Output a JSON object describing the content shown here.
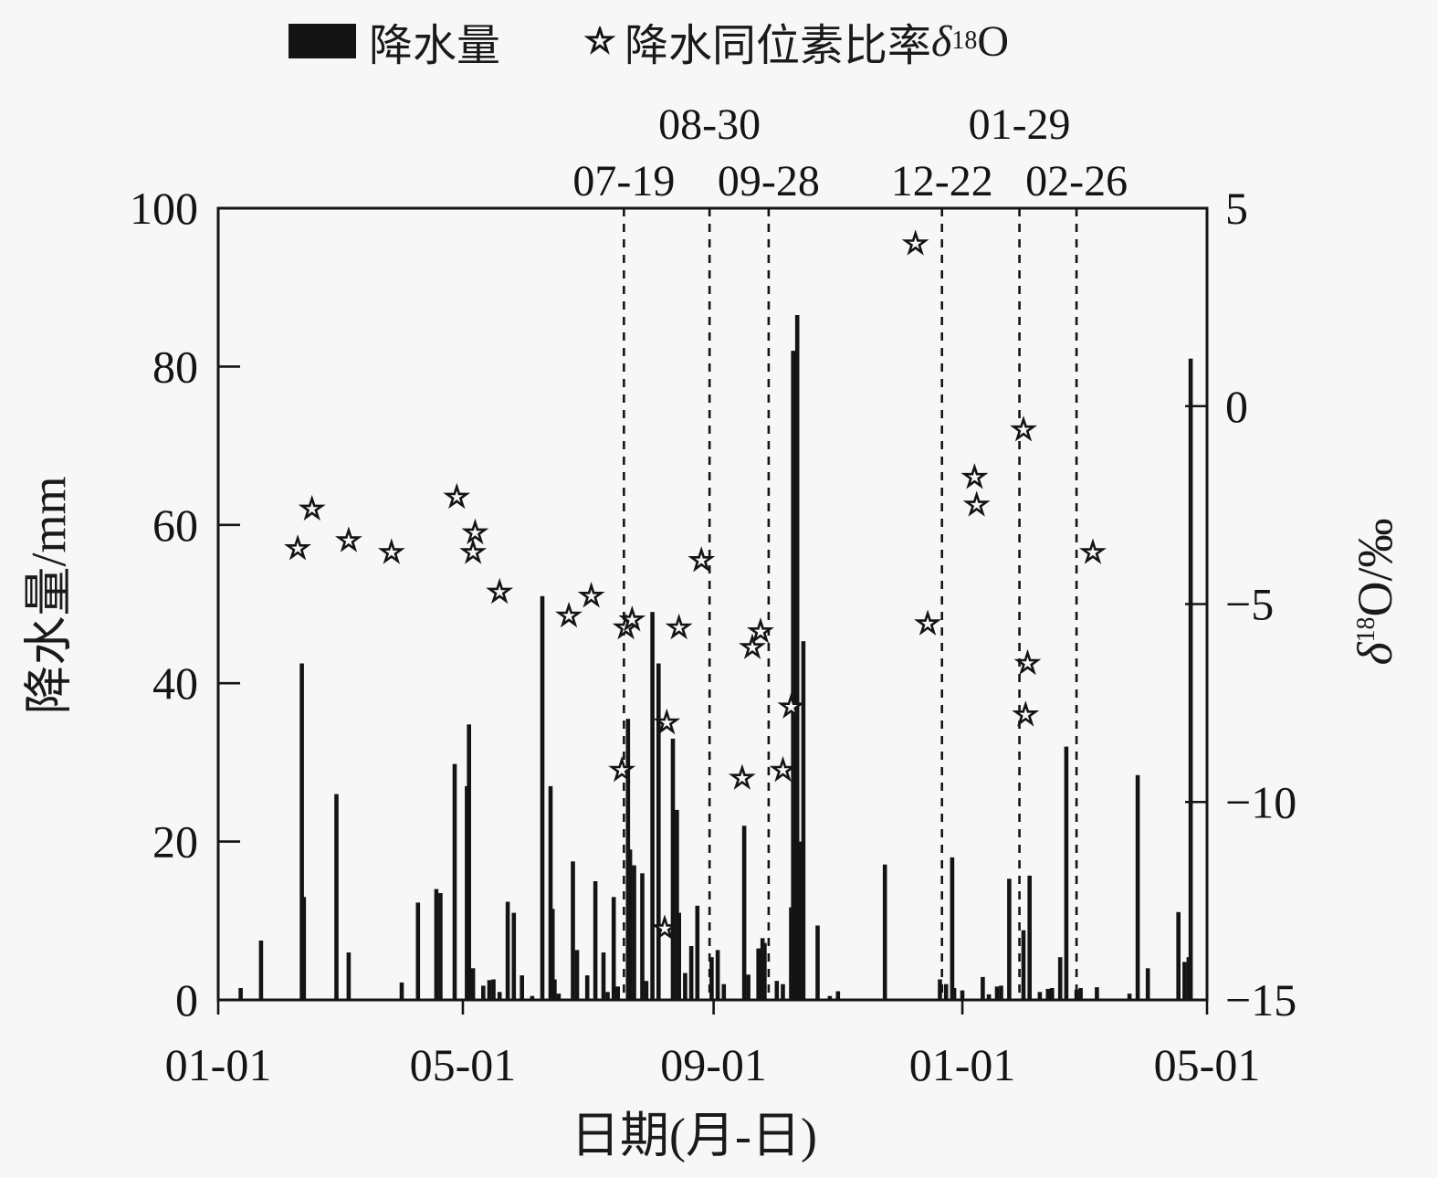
{
  "page": {
    "background": "#f7f7f7",
    "ink": "#141414"
  },
  "legend": {
    "precip": "降水量",
    "isotope": {
      "text": "降水同位素比率 ",
      "delta": "δ",
      "sup": "18",
      "o": "O"
    }
  },
  "axes": {
    "left_label": "降水量/mm",
    "right_label": {
      "delta": "δ",
      "sup": "18",
      "suffix": "O/‰"
    },
    "x_label": "日期(月-日)"
  },
  "chart_data": {
    "type": "bar",
    "title": "",
    "series": [
      {
        "name": "降水量",
        "type": "bar",
        "color": "#141414"
      },
      {
        "name": "降水同位素比率 δ18O",
        "type": "scatter",
        "marker": "open-star",
        "color": "#141414"
      }
    ],
    "x_axis": {
      "label": "日期(月-日)",
      "note": "day index 0 = first-year 01-01; axis spans 485 days to second-year 05-01",
      "span_days": 485,
      "ticks": [
        {
          "day": 0,
          "label": "01-01"
        },
        {
          "day": 120,
          "label": "05-01"
        },
        {
          "day": 243,
          "label": "09-01"
        },
        {
          "day": 365,
          "label": "01-01"
        },
        {
          "day": 485,
          "label": "05-01"
        }
      ]
    },
    "left_y_axis": {
      "label": "降水量/mm",
      "range": [
        0,
        100
      ],
      "ticks": [
        0,
        20,
        40,
        60,
        80,
        100
      ]
    },
    "right_y_axis": {
      "label": "δ18O/‰",
      "range": [
        -15,
        5
      ],
      "ticks": [
        5,
        0,
        -5,
        -10,
        -15
      ]
    },
    "event_lines": [
      {
        "day": 199,
        "label": "07-19",
        "row": "lower"
      },
      {
        "day": 241,
        "label": "08-30",
        "row": "upper"
      },
      {
        "day": 270,
        "label": "09-28",
        "row": "lower"
      },
      {
        "day": 355,
        "label": "12-22",
        "row": "lower"
      },
      {
        "day": 393,
        "label": "01-29",
        "row": "upper"
      },
      {
        "day": 421,
        "label": "02-26",
        "row": "lower"
      }
    ],
    "bars_day_mm": [
      [
        11,
        1.5
      ],
      [
        21,
        7.5
      ],
      [
        41,
        42.5
      ],
      [
        42,
        13
      ],
      [
        58,
        26
      ],
      [
        64,
        6
      ],
      [
        90,
        2.2
      ],
      [
        98,
        12.3
      ],
      [
        107,
        14
      ],
      [
        109,
        13.5
      ],
      [
        116,
        29.8
      ],
      [
        122,
        27
      ],
      [
        123,
        34.8
      ],
      [
        125,
        4
      ],
      [
        130,
        1.8
      ],
      [
        133,
        2.5
      ],
      [
        135,
        2.6
      ],
      [
        138,
        1
      ],
      [
        142,
        12.4
      ],
      [
        145,
        11
      ],
      [
        149,
        3.1
      ],
      [
        154,
        0.5
      ],
      [
        159,
        51
      ],
      [
        163,
        27
      ],
      [
        164,
        11.5
      ],
      [
        165,
        2.6
      ],
      [
        167,
        0.8
      ],
      [
        174,
        17.5
      ],
      [
        176,
        6.3
      ],
      [
        181,
        3.1
      ],
      [
        185,
        15
      ],
      [
        189,
        6
      ],
      [
        191,
        1
      ],
      [
        194,
        13
      ],
      [
        196,
        1.7
      ],
      [
        201,
        35.5
      ],
      [
        202,
        19
      ],
      [
        204,
        17
      ],
      [
        208,
        16
      ],
      [
        210,
        2.4
      ],
      [
        213,
        49
      ],
      [
        216,
        42.5
      ],
      [
        223,
        33
      ],
      [
        225,
        24
      ],
      [
        226,
        11
      ],
      [
        229,
        3.4
      ],
      [
        232,
        6.8
      ],
      [
        235,
        11.9
      ],
      [
        242,
        5.4
      ],
      [
        245,
        6.3
      ],
      [
        248,
        2
      ],
      [
        258,
        22
      ],
      [
        260,
        3.2
      ],
      [
        265,
        6.5
      ],
      [
        267,
        7.8
      ],
      [
        268,
        7.2
      ],
      [
        274,
        2.4
      ],
      [
        277,
        2
      ],
      [
        281,
        11.7
      ],
      [
        282,
        82
      ],
      [
        284,
        86.5
      ],
      [
        286,
        20
      ],
      [
        287,
        45.3
      ],
      [
        294,
        9.4
      ],
      [
        300,
        0.5
      ],
      [
        304,
        1.1
      ],
      [
        327,
        17.1
      ],
      [
        354,
        2.6
      ],
      [
        357,
        2
      ],
      [
        360,
        18
      ],
      [
        361,
        1.5
      ],
      [
        365,
        1.2
      ],
      [
        375,
        2.9
      ],
      [
        378,
        0.7
      ],
      [
        382,
        1.7
      ],
      [
        384,
        1.8
      ],
      [
        388,
        15.3
      ],
      [
        395,
        8.8
      ],
      [
        398,
        15.7
      ],
      [
        403,
        1
      ],
      [
        407,
        1.4
      ],
      [
        409,
        1.5
      ],
      [
        413,
        5.4
      ],
      [
        416,
        32
      ],
      [
        421,
        1.3
      ],
      [
        423,
        1.5
      ],
      [
        431,
        1.6
      ],
      [
        447,
        0.8
      ],
      [
        451,
        28.4
      ],
      [
        456,
        4
      ],
      [
        471,
        11.1
      ],
      [
        474,
        4.8
      ],
      [
        476,
        5.4
      ],
      [
        477,
        81
      ]
    ],
    "isotope_stars_day_permil": [
      [
        39,
        -3.6
      ],
      [
        46,
        -2.6
      ],
      [
        64,
        -3.4
      ],
      [
        85,
        -3.7
      ],
      [
        117,
        -2.3
      ],
      [
        125,
        -3.7
      ],
      [
        126,
        -3.2
      ],
      [
        138,
        -4.7
      ],
      [
        172,
        -5.3
      ],
      [
        183,
        -4.8
      ],
      [
        198,
        -9.2
      ],
      [
        200,
        -5.6
      ],
      [
        203,
        -5.4
      ],
      [
        219,
        -13.2
      ],
      [
        220,
        -8.0
      ],
      [
        226,
        -5.6
      ],
      [
        237,
        -3.9
      ],
      [
        257,
        -9.4
      ],
      [
        262,
        -6.1
      ],
      [
        266,
        -5.7
      ],
      [
        277,
        -9.2
      ],
      [
        281,
        -7.6
      ],
      [
        342,
        4.1
      ],
      [
        348,
        -5.5
      ],
      [
        371,
        -1.8
      ],
      [
        372,
        -2.5
      ],
      [
        395,
        -0.6
      ],
      [
        396,
        -7.8
      ],
      [
        397,
        -6.5
      ],
      [
        429,
        -3.7
      ]
    ]
  }
}
